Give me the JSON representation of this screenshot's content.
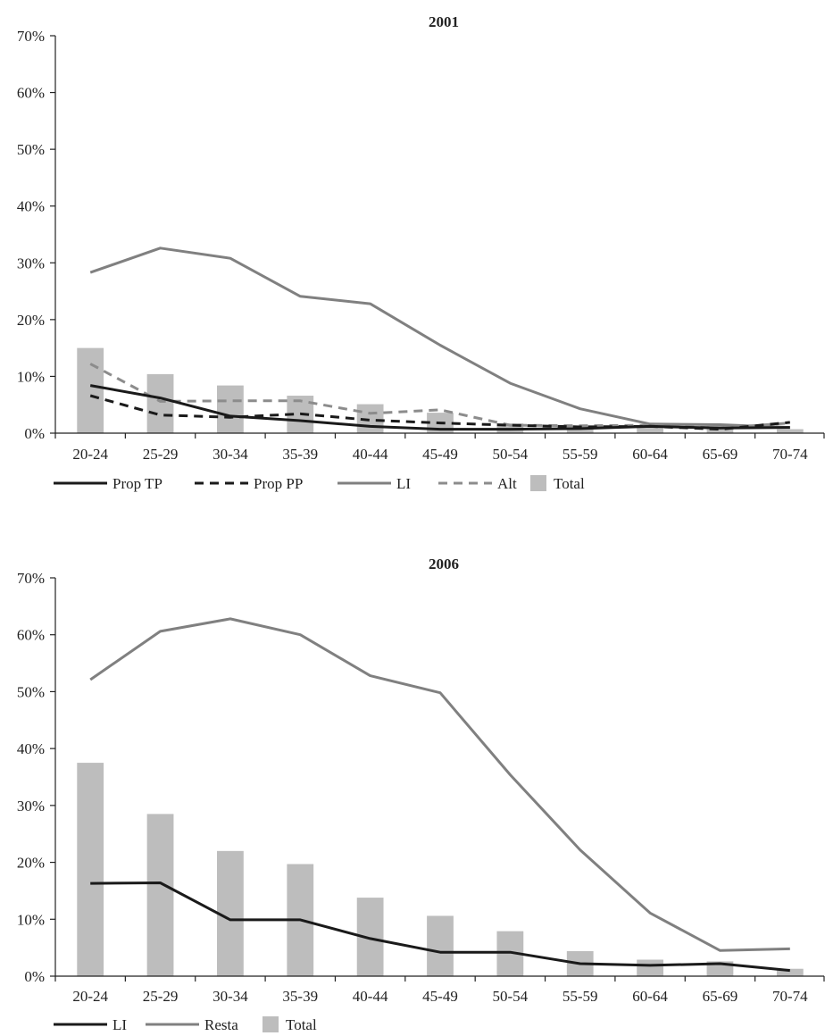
{
  "chart_data": [
    {
      "type": "bar",
      "title": "2001",
      "categories": [
        "20-24",
        "25-29",
        "30-34",
        "35-39",
        "40-44",
        "45-49",
        "50-54",
        "55-59",
        "60-64",
        "65-69",
        "70-74"
      ],
      "y_ticks": [
        "0%",
        "10%",
        "20%",
        "30%",
        "40%",
        "50%",
        "60%",
        "70%"
      ],
      "ylim": [
        0,
        70
      ],
      "grid": false,
      "legend_position": "bottom",
      "series": [
        {
          "name": "Prop TP",
          "type": "line",
          "style": "solid",
          "color": "#1a1a1a",
          "values": [
            8.4,
            6.2,
            3.0,
            2.2,
            1.2,
            0.7,
            0.7,
            0.8,
            1.2,
            0.9,
            1.0
          ]
        },
        {
          "name": "Prop PP",
          "type": "line",
          "style": "dashed",
          "color": "#1a1a1a",
          "values": [
            6.6,
            3.2,
            2.8,
            3.4,
            2.3,
            1.8,
            1.4,
            1.1,
            1.2,
            0.7,
            1.9
          ]
        },
        {
          "name": "LI",
          "type": "line",
          "style": "solid",
          "color": "#808080",
          "values": [
            28.3,
            32.6,
            30.8,
            24.1,
            22.8,
            15.5,
            8.8,
            4.3,
            1.6,
            1.5,
            1.0
          ]
        },
        {
          "name": "Alt",
          "type": "line",
          "style": "dashed",
          "color": "#8c8c8c",
          "values": [
            12.2,
            5.6,
            5.7,
            5.7,
            3.5,
            4.1,
            1.4,
            1.3,
            1.4,
            0.9,
            1.8
          ]
        },
        {
          "name": "Total",
          "type": "bar",
          "color": "#bdbdbd",
          "values": [
            15.0,
            10.4,
            8.4,
            6.6,
            5.1,
            3.6,
            1.7,
            1.3,
            1.2,
            1.3,
            0.7
          ]
        }
      ]
    },
    {
      "type": "bar",
      "title": "2006",
      "categories": [
        "20-24",
        "25-29",
        "30-34",
        "35-39",
        "40-44",
        "45-49",
        "50-54",
        "55-59",
        "60-64",
        "65-69",
        "70-74"
      ],
      "y_ticks": [
        "0%",
        "10%",
        "20%",
        "30%",
        "40%",
        "50%",
        "60%",
        "70%"
      ],
      "ylim": [
        0,
        70
      ],
      "grid": false,
      "legend_position": "bottom",
      "series": [
        {
          "name": "LI",
          "type": "line",
          "style": "solid",
          "color": "#1a1a1a",
          "values": [
            16.3,
            16.4,
            9.9,
            9.9,
            6.6,
            4.2,
            4.2,
            2.2,
            1.9,
            2.2,
            1.0
          ]
        },
        {
          "name": "Resta",
          "type": "line",
          "style": "solid",
          "color": "#808080",
          "values": [
            52.1,
            60.6,
            62.8,
            60.0,
            52.8,
            49.8,
            35.4,
            22.2,
            11.1,
            4.5,
            4.8
          ]
        },
        {
          "name": "Total",
          "type": "bar",
          "color": "#bdbdbd",
          "values": [
            37.5,
            28.5,
            22.0,
            19.7,
            13.8,
            10.6,
            7.9,
            4.4,
            2.9,
            2.6,
            1.3
          ]
        }
      ]
    }
  ]
}
